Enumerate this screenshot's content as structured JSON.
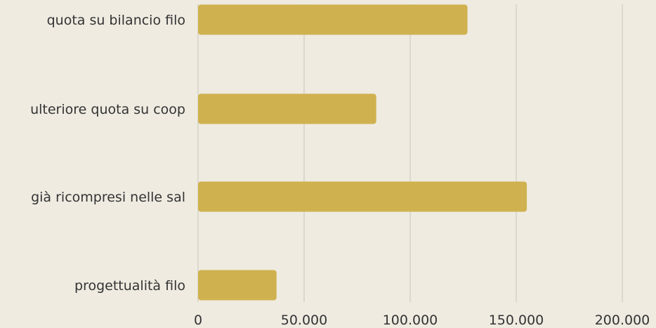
{
  "chart_data": {
    "type": "bar",
    "orientation": "horizontal",
    "categories": [
      "quota su bilancio filo",
      "ulteriore quota su coop",
      "già ricompresi nelle sal",
      "progettualità filo"
    ],
    "values": [
      127000,
      84000,
      155000,
      37000
    ],
    "xlim": [
      0,
      200000
    ],
    "x_ticks": [
      0,
      50000,
      100000,
      150000,
      200000
    ],
    "x_tick_labels": [
      "0",
      "50.000",
      "100.000",
      "150.000",
      "200.000"
    ],
    "grid": "vertical",
    "colors": {
      "bar": "#cfb24f",
      "grid": "#c9c4b8",
      "background": "#efebe1"
    }
  }
}
